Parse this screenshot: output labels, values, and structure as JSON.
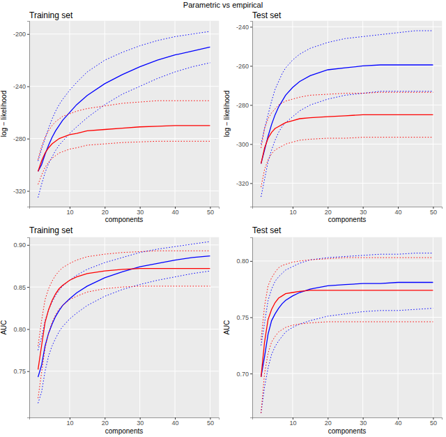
{
  "title": "Parametric vs empirical",
  "chart_data": [
    {
      "type": "line",
      "title": "Training set",
      "x_label": "components",
      "y_label": "log − likelihood",
      "x": [
        1,
        2,
        3,
        4,
        5,
        6,
        7,
        8,
        10,
        12,
        15,
        20,
        25,
        30,
        35,
        40,
        45,
        50
      ],
      "xlim": [
        -1.5,
        52.5
      ],
      "xticks": [
        10,
        20,
        30,
        40,
        50
      ],
      "ylim": [
        -332,
        -190
      ],
      "yticks": [
        -320,
        -280,
        -240,
        -200
      ],
      "grid": true,
      "series": [
        {
          "color": "#0000FF",
          "line_style": "solid",
          "values": [
            -305,
            -300,
            -292,
            -285,
            -279,
            -274,
            -270,
            -266,
            -260,
            -254,
            -247,
            -238,
            -231,
            -225,
            -220,
            -216,
            -213,
            -210
          ]
        },
        {
          "color": "#0000FF",
          "line_style": "dotted",
          "values": [
            -297,
            -288,
            -280,
            -272,
            -265,
            -259,
            -254,
            -250,
            -243,
            -237,
            -229,
            -220,
            -214,
            -209,
            -205,
            -202,
            -200,
            -198
          ]
        },
        {
          "color": "#0000FF",
          "line_style": "dotted",
          "values": [
            -325,
            -315,
            -306,
            -299,
            -294,
            -289,
            -285,
            -282,
            -276,
            -271,
            -264,
            -254,
            -246,
            -240,
            -234,
            -229,
            -225,
            -222
          ]
        },
        {
          "color": "#FF0000",
          "line_style": "solid",
          "values": [
            -305,
            -297,
            -291,
            -287,
            -284,
            -282,
            -280,
            -279,
            -277,
            -276,
            -274,
            -273,
            -272,
            -271,
            -270.5,
            -270,
            -270,
            -270
          ]
        },
        {
          "color": "#FF0000",
          "line_style": "dotted",
          "values": [
            -296,
            -286,
            -279,
            -274,
            -270,
            -267,
            -265,
            -263,
            -261,
            -259,
            -257,
            -255,
            -253,
            -252,
            -251,
            -251,
            -251,
            -251
          ]
        },
        {
          "color": "#FF0000",
          "line_style": "dotted",
          "values": [
            -315,
            -308,
            -302,
            -298,
            -295,
            -293,
            -291,
            -290,
            -288,
            -287,
            -285,
            -284,
            -283,
            -282.5,
            -282,
            -282,
            -282,
            -282
          ]
        }
      ]
    },
    {
      "type": "line",
      "title": "Test set",
      "x_label": "components",
      "y_label": "log − likelihood",
      "x": [
        1,
        2,
        3,
        4,
        5,
        6,
        7,
        8,
        10,
        12,
        15,
        20,
        25,
        30,
        35,
        40,
        45,
        50
      ],
      "xlim": [
        -1.5,
        52.5
      ],
      "xticks": [
        10,
        20,
        30,
        40,
        50
      ],
      "ylim": [
        -332,
        -237
      ],
      "yticks": [
        -320,
        -300,
        -280,
        -260,
        -240
      ],
      "grid": true,
      "series": [
        {
          "color": "#0000FF",
          "line_style": "solid",
          "values": [
            -310,
            -303,
            -296,
            -290,
            -285,
            -281,
            -278,
            -275,
            -271,
            -268,
            -265,
            -262,
            -261,
            -260,
            -259.5,
            -259.5,
            -259.5,
            -259.5
          ]
        },
        {
          "color": "#0000FF",
          "line_style": "dotted",
          "values": [
            -300,
            -292,
            -285,
            -278,
            -272,
            -268,
            -264,
            -261,
            -257,
            -254,
            -251,
            -248,
            -246,
            -245,
            -244,
            -243,
            -242,
            -242
          ]
        },
        {
          "color": "#0000FF",
          "line_style": "dotted",
          "values": [
            -327,
            -318,
            -309,
            -303,
            -298,
            -294,
            -291,
            -289,
            -286,
            -283,
            -280,
            -277,
            -275,
            -274,
            -273,
            -273,
            -273,
            -273
          ]
        },
        {
          "color": "#FF0000",
          "line_style": "solid",
          "values": [
            -310,
            -302,
            -297,
            -294,
            -292,
            -291,
            -290,
            -289,
            -288,
            -287,
            -286.5,
            -286,
            -285.5,
            -285,
            -285,
            -285,
            -285,
            -285
          ]
        },
        {
          "color": "#FF0000",
          "line_style": "dotted",
          "values": [
            -302,
            -292,
            -287,
            -284,
            -282,
            -280,
            -279,
            -278,
            -277,
            -276,
            -275,
            -274.5,
            -274,
            -274,
            -273.5,
            -273.5,
            -273.5,
            -273.5
          ]
        },
        {
          "color": "#FF0000",
          "line_style": "dotted",
          "values": [
            -322,
            -313,
            -308,
            -305,
            -303,
            -302,
            -301,
            -300,
            -299,
            -298,
            -297.5,
            -297,
            -297,
            -296.5,
            -296.5,
            -296.5,
            -296.5,
            -296.5
          ]
        }
      ]
    },
    {
      "type": "line",
      "title": "Training set",
      "x_label": "components",
      "y_label": "AUC",
      "x": [
        1,
        2,
        3,
        4,
        5,
        6,
        7,
        8,
        10,
        12,
        15,
        20,
        25,
        30,
        35,
        40,
        45,
        50
      ],
      "xlim": [
        -1.5,
        52.5
      ],
      "xticks": [
        10,
        20,
        30,
        40,
        50
      ],
      "ylim": [
        0.695,
        0.909
      ],
      "yticks": [
        0.75,
        {
          "value": 0.8,
          "label": "0.80"
        },
        0.85,
        {
          "value": 0.9,
          "label": "0.90"
        }
      ],
      "grid": true,
      "series": [
        {
          "color": "#0000FF",
          "line_style": "solid",
          "values": [
            0.743,
            0.757,
            0.78,
            0.795,
            0.806,
            0.815,
            0.822,
            0.828,
            0.836,
            0.843,
            0.851,
            0.861,
            0.868,
            0.874,
            0.878,
            0.882,
            0.885,
            0.887
          ]
        },
        {
          "color": "#0000FF",
          "line_style": "dotted",
          "values": [
            0.775,
            0.79,
            0.81,
            0.823,
            0.832,
            0.84,
            0.846,
            0.851,
            0.858,
            0.864,
            0.871,
            0.879,
            0.885,
            0.891,
            0.895,
            0.898,
            0.901,
            0.904
          ]
        },
        {
          "color": "#0000FF",
          "line_style": "dotted",
          "values": [
            0.712,
            0.725,
            0.75,
            0.768,
            0.78,
            0.789,
            0.797,
            0.803,
            0.812,
            0.819,
            0.828,
            0.839,
            0.847,
            0.853,
            0.858,
            0.862,
            0.866,
            0.869
          ]
        },
        {
          "color": "#FF0000",
          "line_style": "solid",
          "values": [
            0.752,
            0.78,
            0.808,
            0.823,
            0.834,
            0.842,
            0.848,
            0.852,
            0.858,
            0.862,
            0.866,
            0.869,
            0.871,
            0.872,
            0.872,
            0.872,
            0.872,
            0.872
          ]
        },
        {
          "color": "#FF0000",
          "line_style": "dotted",
          "values": [
            0.78,
            0.81,
            0.835,
            0.848,
            0.857,
            0.864,
            0.869,
            0.873,
            0.878,
            0.882,
            0.886,
            0.889,
            0.891,
            0.892,
            0.893,
            0.893,
            0.893,
            0.893
          ]
        },
        {
          "color": "#FF0000",
          "line_style": "dotted",
          "values": [
            0.718,
            0.748,
            0.777,
            0.795,
            0.808,
            0.817,
            0.824,
            0.828,
            0.835,
            0.839,
            0.844,
            0.848,
            0.85,
            0.851,
            0.851,
            0.851,
            0.851,
            0.851
          ]
        }
      ]
    },
    {
      "type": "line",
      "title": "Test set",
      "x_label": "components",
      "y_label": "AUC",
      "x": [
        1,
        2,
        3,
        4,
        5,
        6,
        7,
        8,
        10,
        12,
        15,
        20,
        25,
        30,
        35,
        40,
        45,
        50
      ],
      "xlim": [
        -1.5,
        52.5
      ],
      "xticks": [
        10,
        20,
        30,
        40,
        50
      ],
      "ylim": [
        0.661,
        0.821
      ],
      "yticks": [
        {
          "value": 0.7,
          "label": "0.70"
        },
        0.75,
        {
          "value": 0.8,
          "label": "0.80"
        }
      ],
      "grid": true,
      "series": [
        {
          "color": "#0000FF",
          "line_style": "solid",
          "values": [
            0.697,
            0.715,
            0.735,
            0.747,
            0.753,
            0.758,
            0.762,
            0.765,
            0.769,
            0.772,
            0.775,
            0.778,
            0.779,
            0.78,
            0.78,
            0.781,
            0.781,
            0.781
          ]
        },
        {
          "color": "#0000FF",
          "line_style": "dotted",
          "values": [
            0.725,
            0.745,
            0.765,
            0.775,
            0.782,
            0.786,
            0.789,
            0.792,
            0.795,
            0.798,
            0.801,
            0.803,
            0.804,
            0.805,
            0.806,
            0.806,
            0.807,
            0.807
          ]
        },
        {
          "color": "#0000FF",
          "line_style": "dotted",
          "values": [
            0.665,
            0.688,
            0.705,
            0.717,
            0.724,
            0.729,
            0.733,
            0.737,
            0.741,
            0.744,
            0.747,
            0.751,
            0.753,
            0.755,
            0.756,
            0.756,
            0.757,
            0.758
          ]
        },
        {
          "color": "#FF0000",
          "line_style": "solid",
          "values": [
            0.697,
            0.728,
            0.748,
            0.757,
            0.763,
            0.767,
            0.769,
            0.771,
            0.772,
            0.773,
            0.774,
            0.774,
            0.774,
            0.774,
            0.774,
            0.774,
            0.774,
            0.774
          ]
        },
        {
          "color": "#FF0000",
          "line_style": "dotted",
          "values": [
            0.73,
            0.76,
            0.778,
            0.785,
            0.79,
            0.794,
            0.796,
            0.797,
            0.799,
            0.8,
            0.801,
            0.802,
            0.803,
            0.803,
            0.803,
            0.803,
            0.803,
            0.803
          ]
        },
        {
          "color": "#FF0000",
          "line_style": "dotted",
          "values": [
            0.665,
            0.7,
            0.718,
            0.728,
            0.733,
            0.737,
            0.739,
            0.741,
            0.743,
            0.744,
            0.745,
            0.746,
            0.746,
            0.746,
            0.746,
            0.746,
            0.746,
            0.746
          ]
        }
      ]
    }
  ]
}
